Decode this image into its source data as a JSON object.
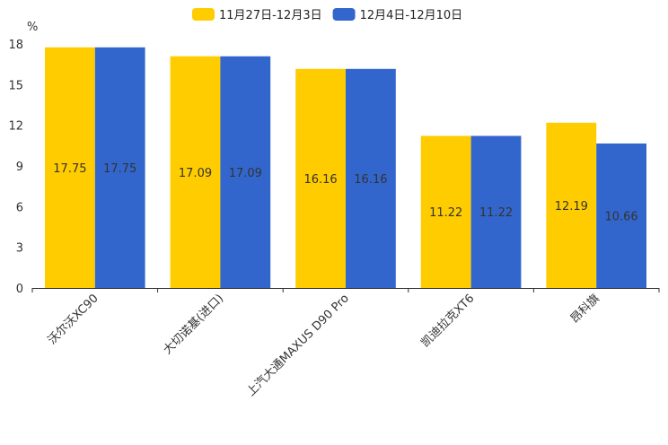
{
  "chart_data": {
    "type": "bar",
    "ylabel": "%",
    "ylim": [
      0,
      18
    ],
    "yticks": [
      0,
      3,
      6,
      9,
      12,
      15,
      18
    ],
    "grid": false,
    "legend_position": "top-center",
    "categories": [
      "沃尔沃XC90",
      "大切诺基(进口)",
      "上汽大通MAXUS D90 Pro",
      "凯迪拉克XT6",
      "昂科旗"
    ],
    "series": [
      {
        "name": "11月27日-12月3日",
        "color": "#FFCC00",
        "values": [
          17.75,
          17.09,
          16.16,
          11.22,
          12.19
        ]
      },
      {
        "name": "12月4日-12月10日",
        "color": "#3366CC",
        "values": [
          17.75,
          17.09,
          16.16,
          11.22,
          10.66
        ]
      }
    ]
  }
}
